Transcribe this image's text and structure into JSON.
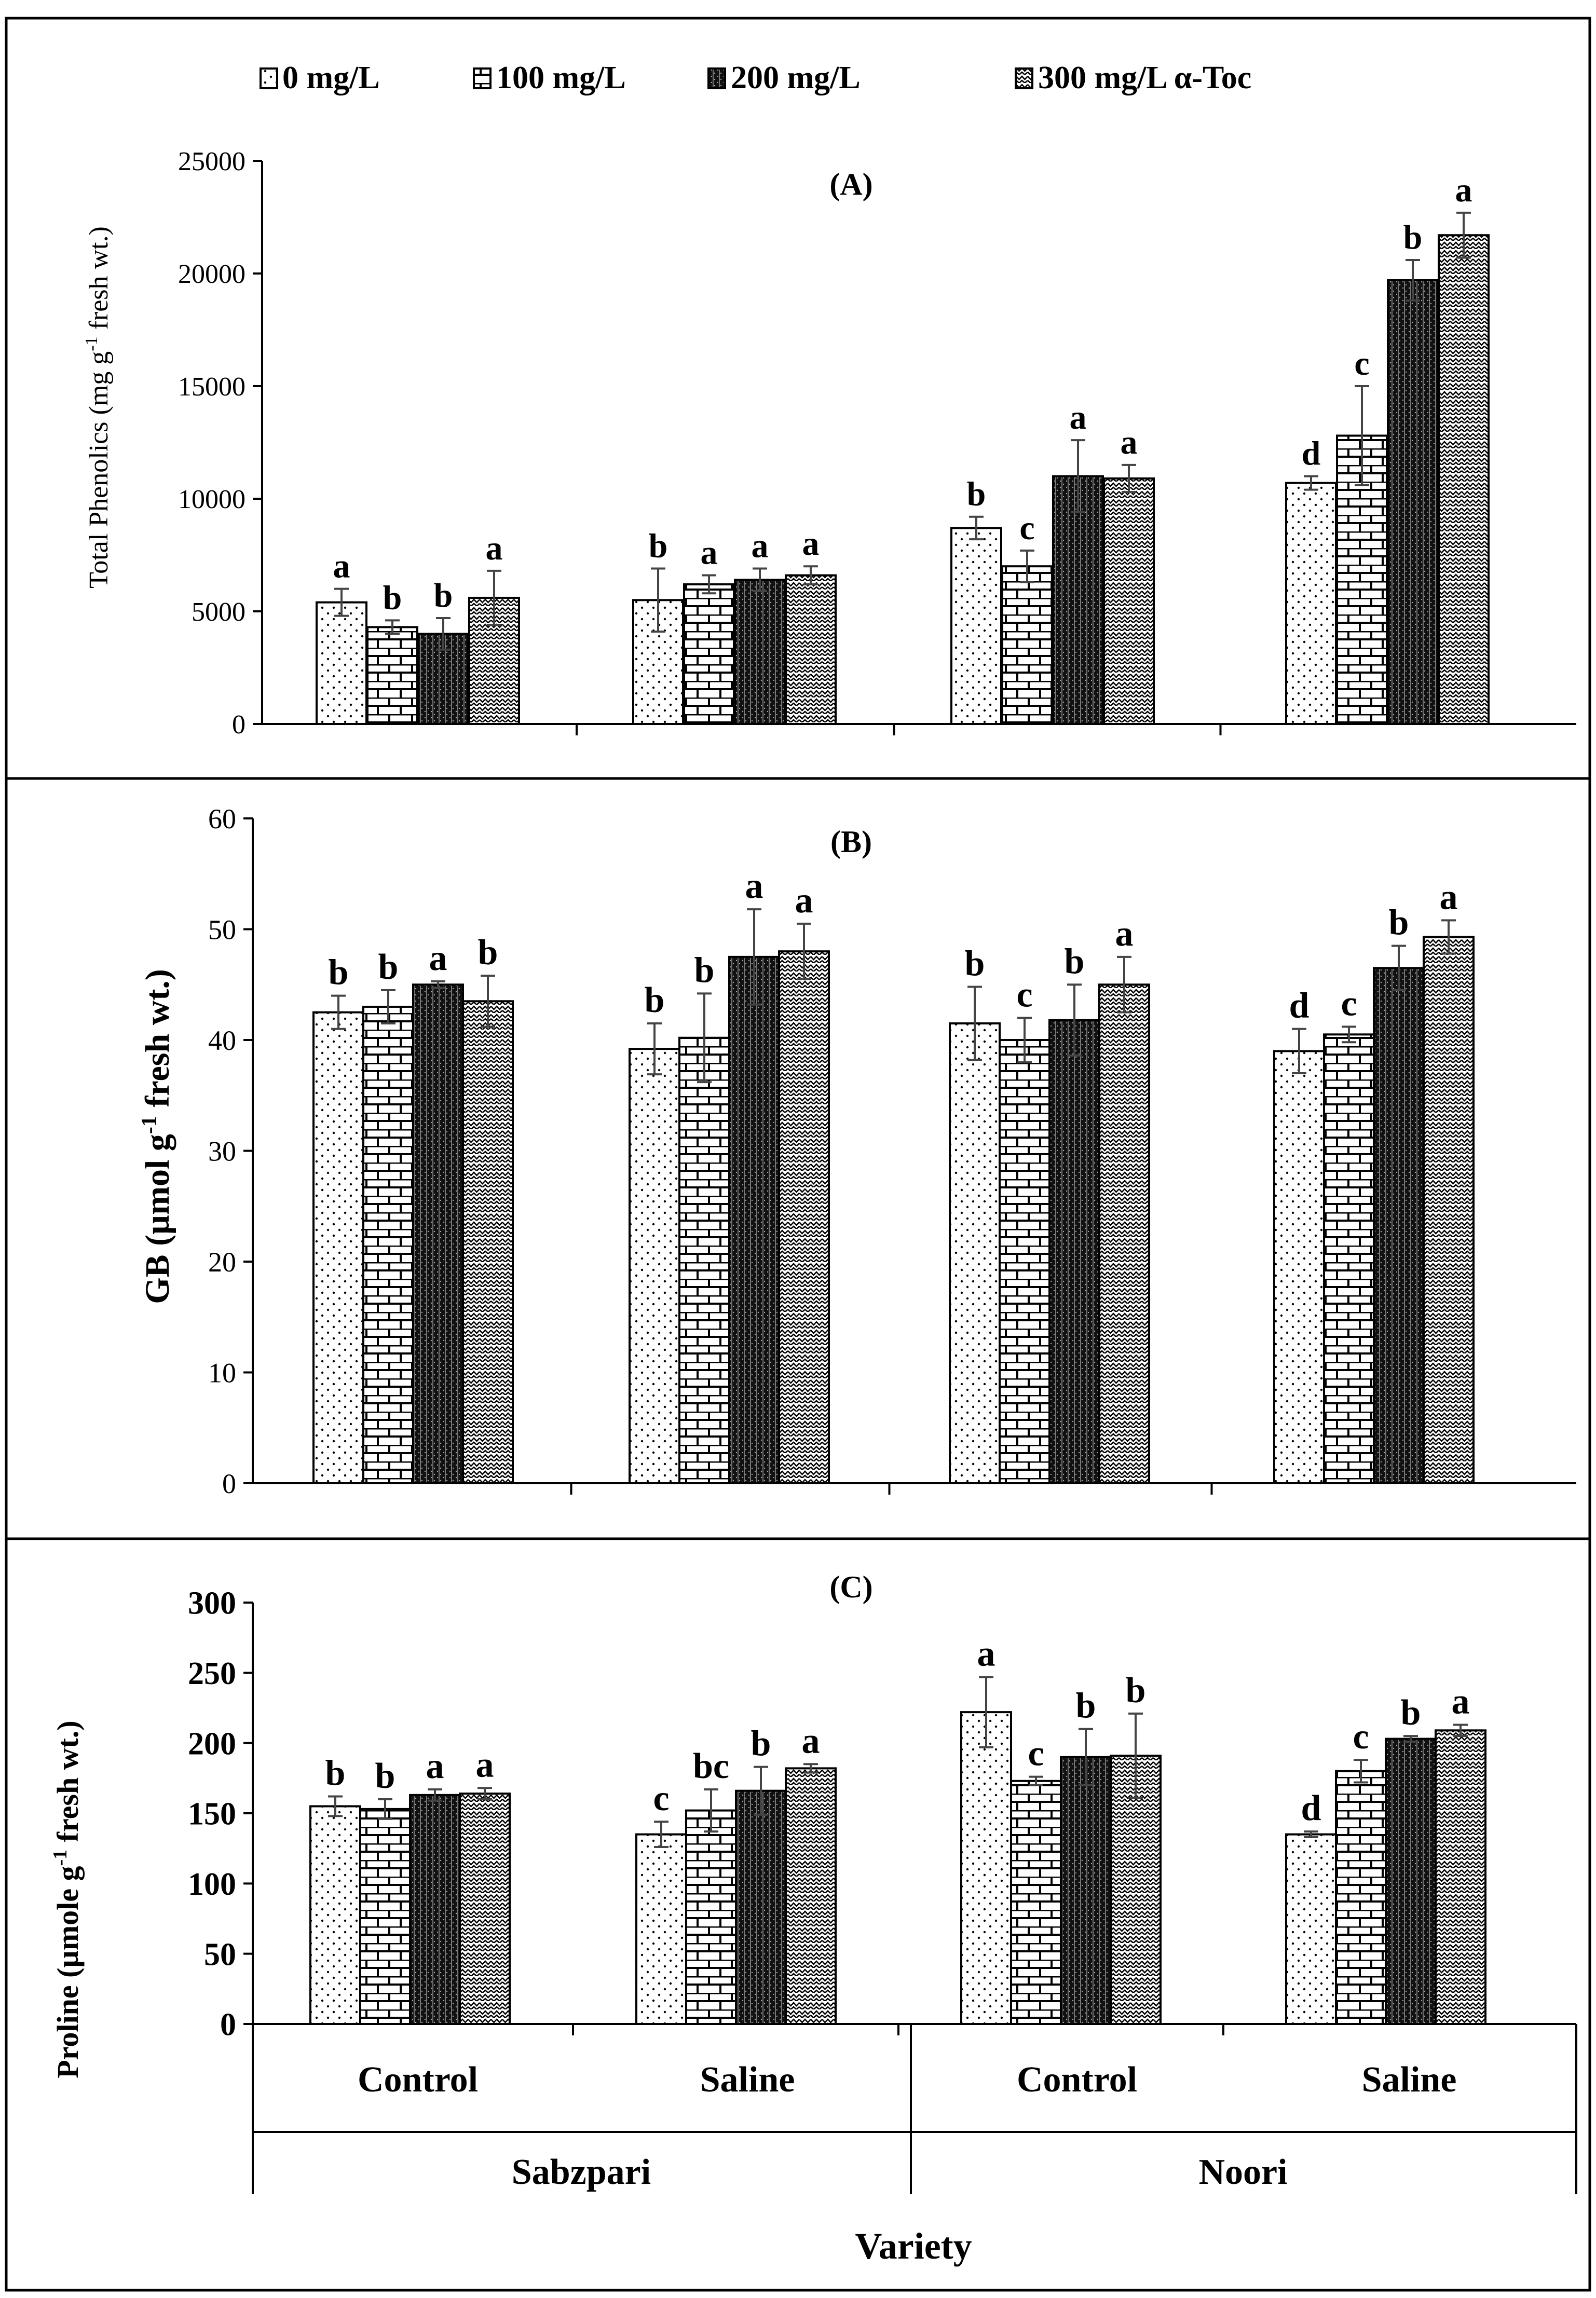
{
  "legend": {
    "entries": [
      "0 mg/L",
      "100 mg/L",
      "200 mg/L",
      "300 mg/L α-Toc"
    ]
  },
  "x_axis": {
    "groups": [
      "Control",
      "Saline",
      "Control",
      "Saline"
    ],
    "varieties": [
      "Sabzpari",
      "Noori"
    ],
    "title": "Variety"
  },
  "colors": {
    "ink": "#000000",
    "background": "#ffffff",
    "bar_fill": "#ffffff"
  },
  "chart_data": [
    {
      "type": "bar",
      "panel": "(A)",
      "ylabel_parts": [
        "Total Phenolics (mg g",
        "-1",
        " fresh wt.)"
      ],
      "ylim": [
        0,
        25000
      ],
      "yticks": [
        0,
        5000,
        10000,
        15000,
        20000,
        25000
      ],
      "categories": [
        "Sabzpari Control",
        "Sabzpari Saline",
        "Noori Control",
        "Noori Saline"
      ],
      "series": [
        {
          "name": "0 mg/L",
          "values": [
            5400,
            5500,
            8700,
            10700
          ],
          "errors": [
            600,
            1400,
            500,
            300
          ],
          "letters": [
            "a",
            "b",
            "b",
            "d"
          ]
        },
        {
          "name": "100 mg/L",
          "values": [
            4300,
            6200,
            7000,
            12800
          ],
          "errors": [
            300,
            400,
            700,
            2200
          ],
          "letters": [
            "b",
            "a",
            "c",
            "c"
          ]
        },
        {
          "name": "200 mg/L",
          "values": [
            4000,
            6400,
            11000,
            19700
          ],
          "errors": [
            700,
            500,
            1600,
            900
          ],
          "letters": [
            "b",
            "a",
            "a",
            "b"
          ]
        },
        {
          "name": "300 mg/L α-Toc",
          "values": [
            5600,
            6600,
            10900,
            21700
          ],
          "errors": [
            1200,
            400,
            600,
            1000
          ],
          "letters": [
            "a",
            "a",
            "a",
            "a"
          ]
        }
      ]
    },
    {
      "type": "bar",
      "panel": "(B)",
      "ylabel_parts": [
        "GB (µmol g",
        "-1",
        " fresh wt.)"
      ],
      "ylim": [
        0,
        60
      ],
      "yticks": [
        0,
        10,
        20,
        30,
        40,
        50,
        60
      ],
      "categories": [
        "Sabzpari Control",
        "Sabzpari Saline",
        "Noori Control",
        "Noori Saline"
      ],
      "series": [
        {
          "name": "0 mg/L",
          "values": [
            42.5,
            39.2,
            41.5,
            39.0
          ],
          "errors": [
            1.5,
            2.3,
            3.3,
            2.0
          ],
          "letters": [
            "b",
            "b",
            "b",
            "d"
          ]
        },
        {
          "name": "100 mg/L",
          "values": [
            43.0,
            40.2,
            40.0,
            40.5
          ],
          "errors": [
            1.5,
            4.0,
            2.0,
            0.7
          ],
          "letters": [
            "b",
            "b",
            "c",
            "c"
          ]
        },
        {
          "name": "200 mg/L",
          "values": [
            45.0,
            47.5,
            41.8,
            46.5
          ],
          "errors": [
            0.3,
            4.3,
            3.2,
            2.0
          ],
          "letters": [
            "a",
            "a",
            "b",
            "b"
          ]
        },
        {
          "name": "300 mg/L α-Toc",
          "values": [
            43.5,
            48.0,
            45.0,
            49.3
          ],
          "errors": [
            2.3,
            2.5,
            2.5,
            1.5
          ],
          "letters": [
            "b",
            "a",
            "a",
            "a"
          ]
        }
      ]
    },
    {
      "type": "bar",
      "panel": "(C)",
      "ylabel_parts": [
        "Proline (µmole g",
        "-1",
        "  fresh wt.)"
      ],
      "ylim": [
        0,
        300
      ],
      "yticks": [
        0,
        50,
        100,
        150,
        200,
        250,
        300
      ],
      "categories": [
        "Sabzpari Control",
        "Sabzpari Saline",
        "Noori Control",
        "Noori Saline"
      ],
      "series": [
        {
          "name": "0 mg/L",
          "values": [
            155,
            135,
            222,
            135
          ],
          "errors": [
            7,
            9,
            25,
            2
          ],
          "letters": [
            "b",
            "c",
            "a",
            "d"
          ]
        },
        {
          "name": "100 mg/L",
          "values": [
            153,
            152,
            173,
            180
          ],
          "errors": [
            7,
            15,
            3,
            8
          ],
          "letters": [
            "b",
            "bc",
            "c",
            "c"
          ]
        },
        {
          "name": "200 mg/L",
          "values": [
            163,
            166,
            190,
            203
          ],
          "errors": [
            4,
            17,
            20,
            2
          ],
          "letters": [
            "a",
            "b",
            "b",
            "b"
          ]
        },
        {
          "name": "300 mg/L α-Toc",
          "values": [
            164,
            182,
            191,
            209
          ],
          "errors": [
            4,
            3,
            30,
            4
          ],
          "letters": [
            "a",
            "a",
            "b",
            "a"
          ]
        }
      ]
    }
  ]
}
